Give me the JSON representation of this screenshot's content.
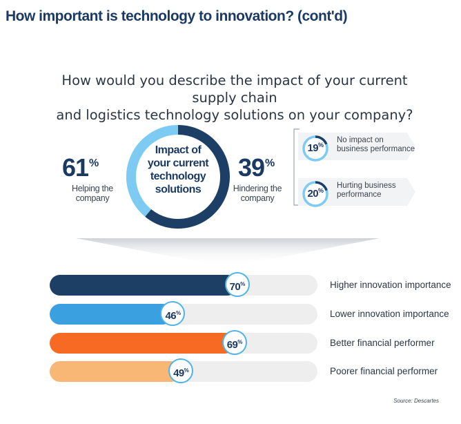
{
  "title": "How important is technology to innovation? (cont'd)",
  "question": [
    "How would you describe the impact of your current supply chain",
    "and logistics technology solutions on your company?"
  ],
  "donut": {
    "center_label": [
      "Impact of",
      "your current",
      "technology",
      "solutions"
    ],
    "helping": {
      "value": "61",
      "unit": "%",
      "label": [
        "Helping the",
        "company"
      ]
    },
    "hindering": {
      "value": "39",
      "unit": "%",
      "label": [
        "Hindering the",
        "company"
      ]
    }
  },
  "breakdown": [
    {
      "value": "19",
      "unit": "%",
      "label": [
        "No impact on",
        "business performance"
      ]
    },
    {
      "value": "20",
      "unit": "%",
      "label": [
        "Hurting business",
        "performance"
      ]
    }
  ],
  "source": "Source: Descartes",
  "colors": {
    "navy": "#1d3f66",
    "blue": "#3aa0e0",
    "light_blue": "#7dcbf2",
    "orange": "#f76a24",
    "peach": "#f9b776",
    "track": "#eeeeee",
    "accent": "#4db3e8"
  },
  "chart_data": [
    {
      "type": "pie",
      "title": "",
      "categories": [
        "Helping the company",
        "Hindering the company"
      ],
      "values": [
        61,
        39
      ],
      "colors": [
        "#1d3f66",
        "#7dcbf2"
      ]
    },
    {
      "type": "pie",
      "categories": [
        "No impact on business performance",
        "Hurting business performance"
      ],
      "values": [
        19,
        20
      ]
    },
    {
      "type": "bar",
      "orientation": "horizontal",
      "categories": [
        "Higher innovation importance",
        "Lower innovation importance",
        "Better financial performer",
        "Poorer financial performer"
      ],
      "values": [
        70,
        46,
        69,
        49
      ],
      "value_labels": [
        "70",
        "46",
        "69",
        "49"
      ],
      "unit": "%",
      "colors": [
        "#1d3f66",
        "#3aa0e0",
        "#f76a24",
        "#f9b776"
      ],
      "ylim": [
        0,
        100
      ]
    }
  ]
}
